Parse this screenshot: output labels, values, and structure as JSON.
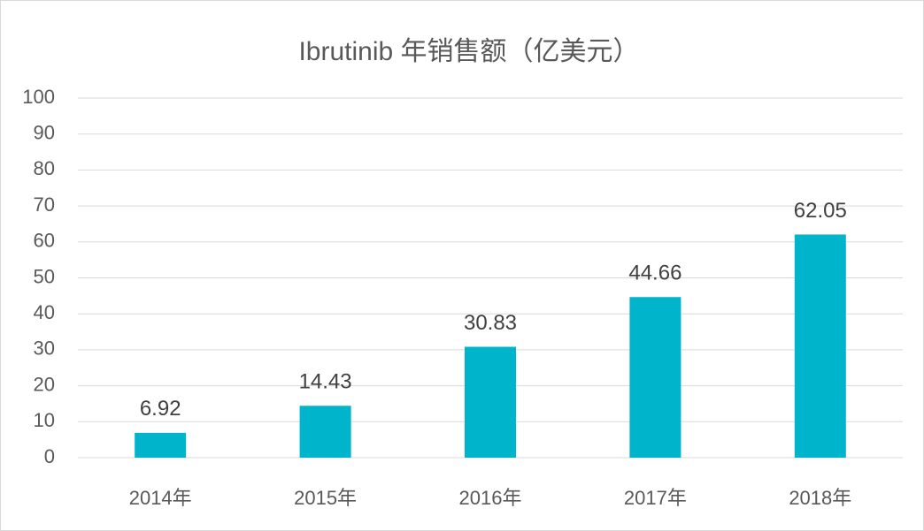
{
  "chart_data": {
    "type": "bar",
    "title": "Ibrutinib 年销售额（亿美元）",
    "categories": [
      "2014年",
      "2015年",
      "2016年",
      "2017年",
      "2018年"
    ],
    "values": [
      6.92,
      14.43,
      30.83,
      44.66,
      62.05
    ],
    "color": "#00b4cc",
    "ylim": [
      0,
      100
    ],
    "yticks": [
      0,
      10,
      20,
      30,
      40,
      50,
      60,
      70,
      80,
      90,
      100
    ],
    "grid": true
  }
}
